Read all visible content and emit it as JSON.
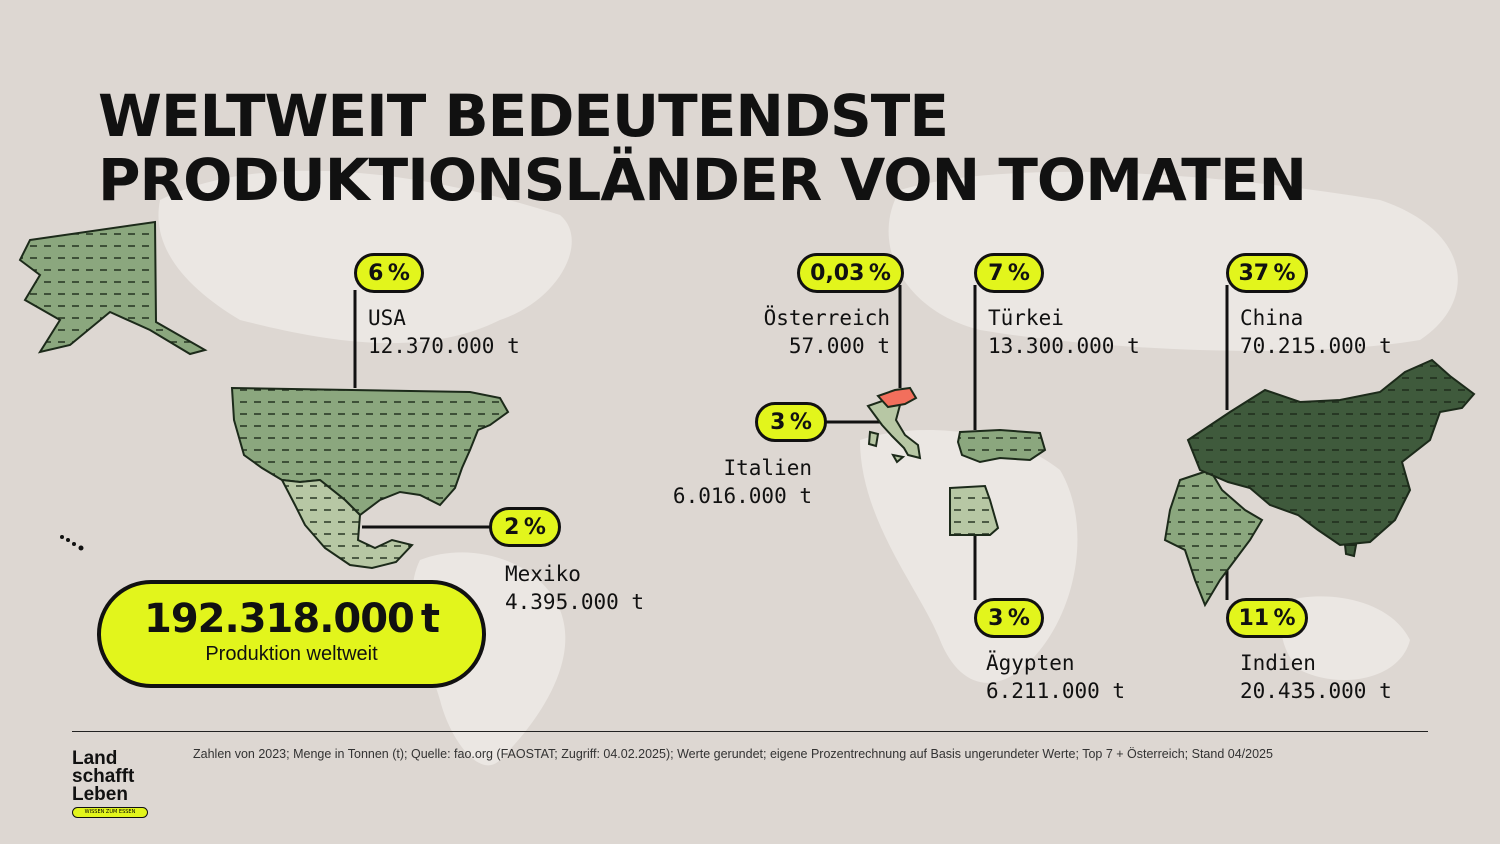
{
  "title": {
    "line1": "WELTWEIT BEDEUTENDSTE",
    "line2": "PRODUKTIONSLÄNDER VON TOMATEN"
  },
  "countries": [
    {
      "key": "usa",
      "name": "USA",
      "amount": "12.370.000 t",
      "share": "6 %"
    },
    {
      "key": "mexiko",
      "name": "Mexiko",
      "amount": "4.395.000 t",
      "share": "2 %"
    },
    {
      "key": "oesterreich",
      "name": "Österreich",
      "amount": "57.000 t",
      "share": "0,03 %"
    },
    {
      "key": "italien",
      "name": "Italien",
      "amount": "6.016.000 t",
      "share": "3 %"
    },
    {
      "key": "tuerkei",
      "name": "Türkei",
      "amount": "13.300.000 t",
      "share": "7 %"
    },
    {
      "key": "aegypten",
      "name": "Ägypten",
      "amount": "6.211.000 t",
      "share": "3 %"
    },
    {
      "key": "china",
      "name": "China",
      "amount": "70.215.000 t",
      "share": "37 %"
    },
    {
      "key": "indien",
      "name": "Indien",
      "amount": "20.435.000 t",
      "share": "11 %"
    }
  ],
  "total": {
    "value": "192.318.000 t",
    "label": "Produktion weltweit"
  },
  "footnote": "Zahlen von 2023; Menge in Tonnen (t); Quelle: fao.org (FAOSTAT; Zugriff: 04.02.2025); Werte gerundet; eigene Prozentrechnung auf Basis ungerundeter Werte; Top 7 + Österreich; Stand 04/2025",
  "logo": {
    "line1": "Land",
    "line2": "schafft",
    "line3": "Leben",
    "tagline": "WISSEN ZUM ESSEN"
  },
  "colors": {
    "background": "#ddd7d2",
    "land_background": "#ebe7e3",
    "highlight": "#e2f51c",
    "country_light": "#b7c7a4",
    "country_mid": "#8ba77e",
    "country_dark": "#3f5a3c",
    "austria": "#f26f5c",
    "ink": "#111111"
  }
}
